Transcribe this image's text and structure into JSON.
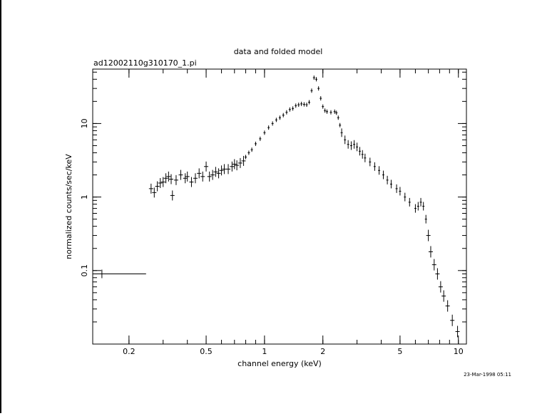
{
  "chart_data": {
    "type": "scatter",
    "title": "data and folded model",
    "subtitle": "ad12002110g310170_1.pi",
    "xlabel": "channel energy (keV)",
    "ylabel": "normalized counts/sec/keV",
    "x_scale": "log",
    "y_scale": "log",
    "xlim": [
      0.13,
      11
    ],
    "ylim": [
      0.01,
      55
    ],
    "x_ticks": [
      0.2,
      0.5,
      1,
      2,
      5,
      10
    ],
    "x_tick_labels": [
      "0.2",
      "0.5",
      "1",
      "2",
      "5",
      "10"
    ],
    "y_ticks": [
      0.1,
      1,
      10
    ],
    "y_tick_labels": [
      "0.1",
      "1",
      "10"
    ],
    "grid": false,
    "legend": "none",
    "timestamp": "23-Mar-1998 05:11",
    "series": [
      {
        "points": [
          [
            0.145,
            0.09
          ],
          [
            0.26,
            1.3
          ],
          [
            0.27,
            1.15
          ],
          [
            0.28,
            1.4
          ],
          [
            0.29,
            1.55
          ],
          [
            0.3,
            1.6
          ],
          [
            0.31,
            1.8
          ],
          [
            0.32,
            1.9
          ],
          [
            0.33,
            1.75
          ],
          [
            0.335,
            1.05
          ],
          [
            0.35,
            1.7
          ],
          [
            0.37,
            2.0
          ],
          [
            0.39,
            1.8
          ],
          [
            0.4,
            1.9
          ],
          [
            0.42,
            1.6
          ],
          [
            0.44,
            1.8
          ],
          [
            0.46,
            2.1
          ],
          [
            0.48,
            1.9
          ],
          [
            0.5,
            2.6
          ],
          [
            0.52,
            1.9
          ],
          [
            0.54,
            2.0
          ],
          [
            0.56,
            2.2
          ],
          [
            0.58,
            2.1
          ],
          [
            0.6,
            2.3
          ],
          [
            0.62,
            2.4
          ],
          [
            0.65,
            2.4
          ],
          [
            0.68,
            2.6
          ],
          [
            0.7,
            2.8
          ],
          [
            0.72,
            2.7
          ],
          [
            0.75,
            2.9
          ],
          [
            0.78,
            3.1
          ],
          [
            0.8,
            3.5
          ],
          [
            0.83,
            4.0
          ],
          [
            0.86,
            4.4
          ],
          [
            0.9,
            5.3
          ],
          [
            0.95,
            6.2
          ],
          [
            1.0,
            7.5
          ],
          [
            1.05,
            8.8
          ],
          [
            1.1,
            10.0
          ],
          [
            1.15,
            11.2
          ],
          [
            1.2,
            12.0
          ],
          [
            1.25,
            13.0
          ],
          [
            1.3,
            14.2
          ],
          [
            1.35,
            15.5
          ],
          [
            1.4,
            16.0
          ],
          [
            1.45,
            17.5
          ],
          [
            1.5,
            18.0
          ],
          [
            1.55,
            18.5
          ],
          [
            1.6,
            18.2
          ],
          [
            1.65,
            18.0
          ],
          [
            1.7,
            19.5
          ],
          [
            1.75,
            28.0
          ],
          [
            1.8,
            42.0
          ],
          [
            1.85,
            40.0
          ],
          [
            1.9,
            30.0
          ],
          [
            1.95,
            22.0
          ],
          [
            2.0,
            17.0
          ],
          [
            2.05,
            15.0
          ],
          [
            2.1,
            14.5
          ],
          [
            2.2,
            14.2
          ],
          [
            2.3,
            14.5
          ],
          [
            2.35,
            14.0
          ],
          [
            2.4,
            12.0
          ],
          [
            2.45,
            9.5
          ],
          [
            2.5,
            7.5
          ],
          [
            2.6,
            6.0
          ],
          [
            2.7,
            5.2
          ],
          [
            2.8,
            5.0
          ],
          [
            2.9,
            5.2
          ],
          [
            3.0,
            4.8
          ],
          [
            3.1,
            4.2
          ],
          [
            3.2,
            3.8
          ],
          [
            3.3,
            3.4
          ],
          [
            3.5,
            3.0
          ],
          [
            3.7,
            2.6
          ],
          [
            3.9,
            2.3
          ],
          [
            4.1,
            2.0
          ],
          [
            4.3,
            1.7
          ],
          [
            4.5,
            1.5
          ],
          [
            4.8,
            1.3
          ],
          [
            5.0,
            1.2
          ],
          [
            5.3,
            1.0
          ],
          [
            5.6,
            0.85
          ],
          [
            6.0,
            0.7
          ],
          [
            6.2,
            0.75
          ],
          [
            6.4,
            0.85
          ],
          [
            6.6,
            0.75
          ],
          [
            6.8,
            0.5
          ],
          [
            7.0,
            0.3
          ],
          [
            7.2,
            0.18
          ],
          [
            7.5,
            0.12
          ],
          [
            7.8,
            0.09
          ],
          [
            8.1,
            0.06
          ],
          [
            8.4,
            0.045
          ],
          [
            8.8,
            0.033
          ],
          [
            9.3,
            0.021
          ],
          [
            9.9,
            0.0148
          ]
        ]
      }
    ]
  }
}
